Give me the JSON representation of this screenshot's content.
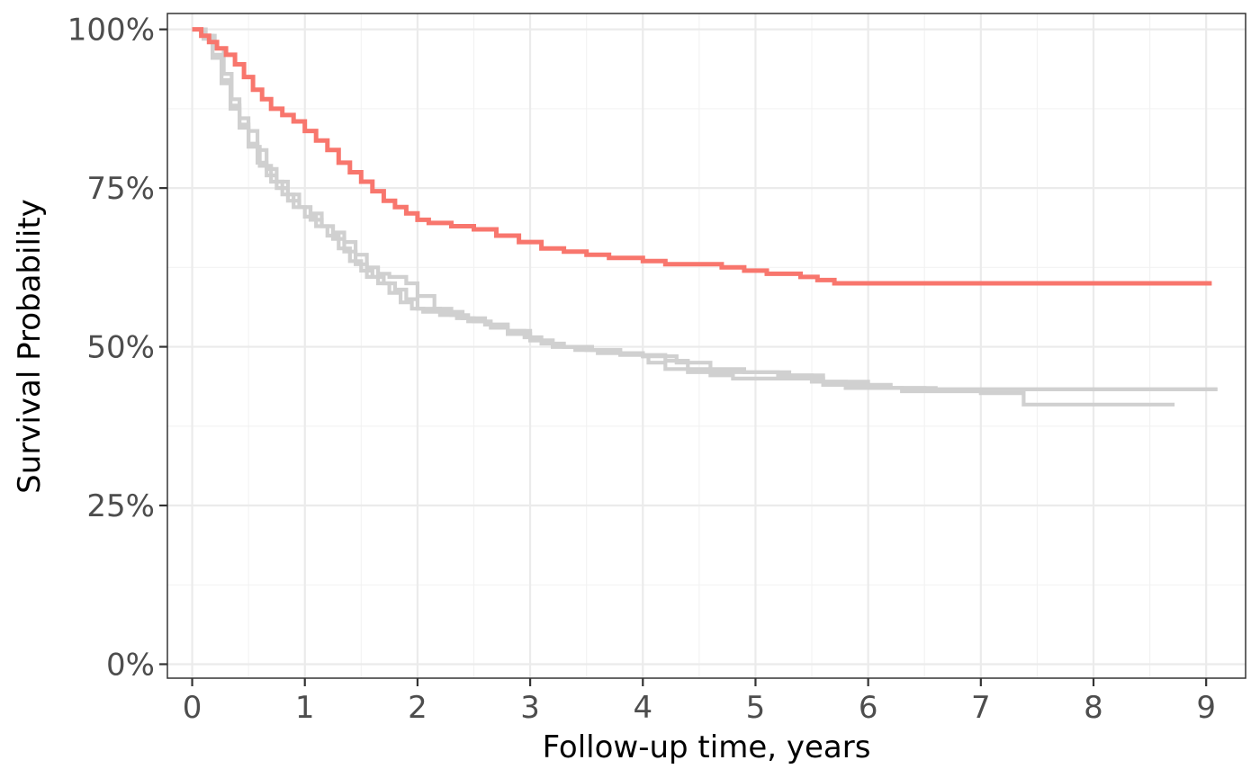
{
  "chart_data": {
    "type": "line",
    "step": true,
    "xlabel": "Follow-up time, years",
    "ylabel": "Survival Probability",
    "xlim": [
      -0.22,
      9.35
    ],
    "ylim": [
      -0.022,
      1.025
    ],
    "x_ticks": [
      0,
      1,
      2,
      3,
      4,
      5,
      6,
      7,
      8,
      9
    ],
    "x_tick_labels": [
      "0",
      "1",
      "2",
      "3",
      "4",
      "5",
      "6",
      "7",
      "8",
      "9"
    ],
    "y_ticks": [
      0,
      0.25,
      0.5,
      0.75,
      1.0
    ],
    "y_tick_labels": [
      "0%",
      "25%",
      "50%",
      "75%",
      "100%"
    ],
    "grid": true,
    "legend": "none",
    "series": [
      {
        "color": "#d0d0d0",
        "x": [
          0,
          0.12,
          0.2,
          0.28,
          0.35,
          0.42,
          0.5,
          0.58,
          0.66,
          0.75,
          0.85,
          0.95,
          1.05,
          1.15,
          1.25,
          1.35,
          1.45,
          1.55,
          1.65,
          1.75,
          1.85,
          1.95,
          2.05,
          2.2,
          2.35,
          2.5,
          2.65,
          2.8,
          2.95,
          3.1,
          3.3,
          3.55,
          3.8,
          4.0,
          4.05,
          4.2,
          4.4,
          4.6,
          4.8,
          5.0,
          5.3,
          5.6,
          5.8,
          6.0,
          6.3,
          6.6,
          7.0,
          7.35,
          7.38,
          7.6,
          8.0,
          8.4,
          8.72
        ],
        "y": [
          1.0,
          0.99,
          0.97,
          0.93,
          0.89,
          0.86,
          0.84,
          0.81,
          0.78,
          0.76,
          0.74,
          0.72,
          0.7,
          0.69,
          0.67,
          0.65,
          0.63,
          0.61,
          0.6,
          0.585,
          0.57,
          0.56,
          0.555,
          0.55,
          0.545,
          0.54,
          0.53,
          0.525,
          0.515,
          0.505,
          0.5,
          0.495,
          0.49,
          0.485,
          0.475,
          0.465,
          0.46,
          0.455,
          0.45,
          0.45,
          0.45,
          0.44,
          0.435,
          0.435,
          0.43,
          0.43,
          0.427,
          0.427,
          0.409,
          0.409,
          0.409,
          0.409,
          0.409
        ]
      },
      {
        "color": "#d0d0d0",
        "x": [
          0,
          0.1,
          0.18,
          0.26,
          0.34,
          0.42,
          0.5,
          0.58,
          0.66,
          0.75,
          0.85,
          0.95,
          1.05,
          1.15,
          1.25,
          1.35,
          1.45,
          1.55,
          1.65,
          1.75,
          1.9,
          2.0,
          2.15,
          2.3,
          2.45,
          2.6,
          2.8,
          3.0,
          3.2,
          3.4,
          3.6,
          3.8,
          4.0,
          4.2,
          4.4,
          4.6,
          4.8,
          5.0,
          5.3,
          5.6,
          6.0,
          6.5,
          7.0,
          7.5,
          8.0,
          8.5,
          9.0,
          9.1
        ],
        "y": [
          1.0,
          0.99,
          0.96,
          0.92,
          0.88,
          0.85,
          0.82,
          0.79,
          0.77,
          0.75,
          0.73,
          0.72,
          0.71,
          0.69,
          0.68,
          0.665,
          0.645,
          0.625,
          0.615,
          0.61,
          0.6,
          0.58,
          0.56,
          0.55,
          0.54,
          0.535,
          0.525,
          0.51,
          0.5,
          0.495,
          0.49,
          0.487,
          0.487,
          0.478,
          0.465,
          0.46,
          0.46,
          0.46,
          0.455,
          0.445,
          0.435,
          0.433,
          0.433,
          0.433,
          0.433,
          0.433,
          0.433,
          0.433
        ]
      },
      {
        "color": "#d0d0d0",
        "x": [
          0,
          0.1,
          0.18,
          0.26,
          0.34,
          0.42,
          0.5,
          0.6,
          0.7,
          0.8,
          0.9,
          1.0,
          1.1,
          1.2,
          1.3,
          1.4,
          1.5,
          1.6,
          1.7,
          1.8,
          1.9,
          2.0,
          2.2,
          2.4,
          2.6,
          2.8,
          3.0,
          3.2,
          3.5,
          3.8,
          4.0,
          4.3,
          4.6,
          4.9,
          5.2,
          5.5,
          5.8,
          6.2,
          6.6,
          7.0,
          7.5,
          8.0,
          8.5,
          9.0,
          9.1
        ],
        "y": [
          1.0,
          0.985,
          0.955,
          0.915,
          0.875,
          0.845,
          0.815,
          0.785,
          0.76,
          0.74,
          0.72,
          0.705,
          0.69,
          0.675,
          0.655,
          0.635,
          0.62,
          0.61,
          0.6,
          0.59,
          0.575,
          0.56,
          0.555,
          0.545,
          0.535,
          0.52,
          0.51,
          0.5,
          0.495,
          0.49,
          0.485,
          0.475,
          0.465,
          0.46,
          0.455,
          0.445,
          0.44,
          0.435,
          0.433,
          0.433,
          0.433,
          0.433,
          0.433,
          0.433,
          0.433
        ]
      },
      {
        "color": "#f8766d",
        "x": [
          0,
          0.08,
          0.15,
          0.22,
          0.3,
          0.38,
          0.46,
          0.54,
          0.62,
          0.7,
          0.8,
          0.9,
          1.0,
          1.1,
          1.2,
          1.3,
          1.4,
          1.5,
          1.6,
          1.7,
          1.8,
          1.9,
          2.0,
          2.1,
          2.3,
          2.5,
          2.7,
          2.9,
          3.1,
          3.3,
          3.5,
          3.7,
          4.0,
          4.2,
          4.5,
          4.7,
          4.9,
          5.1,
          5.4,
          5.55,
          5.7,
          6.0,
          6.5,
          7.0,
          7.5,
          8.0,
          8.5,
          9.05
        ],
        "y": [
          1.0,
          0.99,
          0.98,
          0.97,
          0.96,
          0.945,
          0.925,
          0.905,
          0.89,
          0.875,
          0.865,
          0.855,
          0.84,
          0.825,
          0.81,
          0.79,
          0.775,
          0.76,
          0.745,
          0.73,
          0.72,
          0.71,
          0.7,
          0.695,
          0.69,
          0.685,
          0.675,
          0.665,
          0.655,
          0.65,
          0.645,
          0.64,
          0.635,
          0.63,
          0.63,
          0.625,
          0.62,
          0.615,
          0.61,
          0.605,
          0.6,
          0.6,
          0.6,
          0.6,
          0.6,
          0.6,
          0.6,
          0.6
        ]
      }
    ]
  }
}
